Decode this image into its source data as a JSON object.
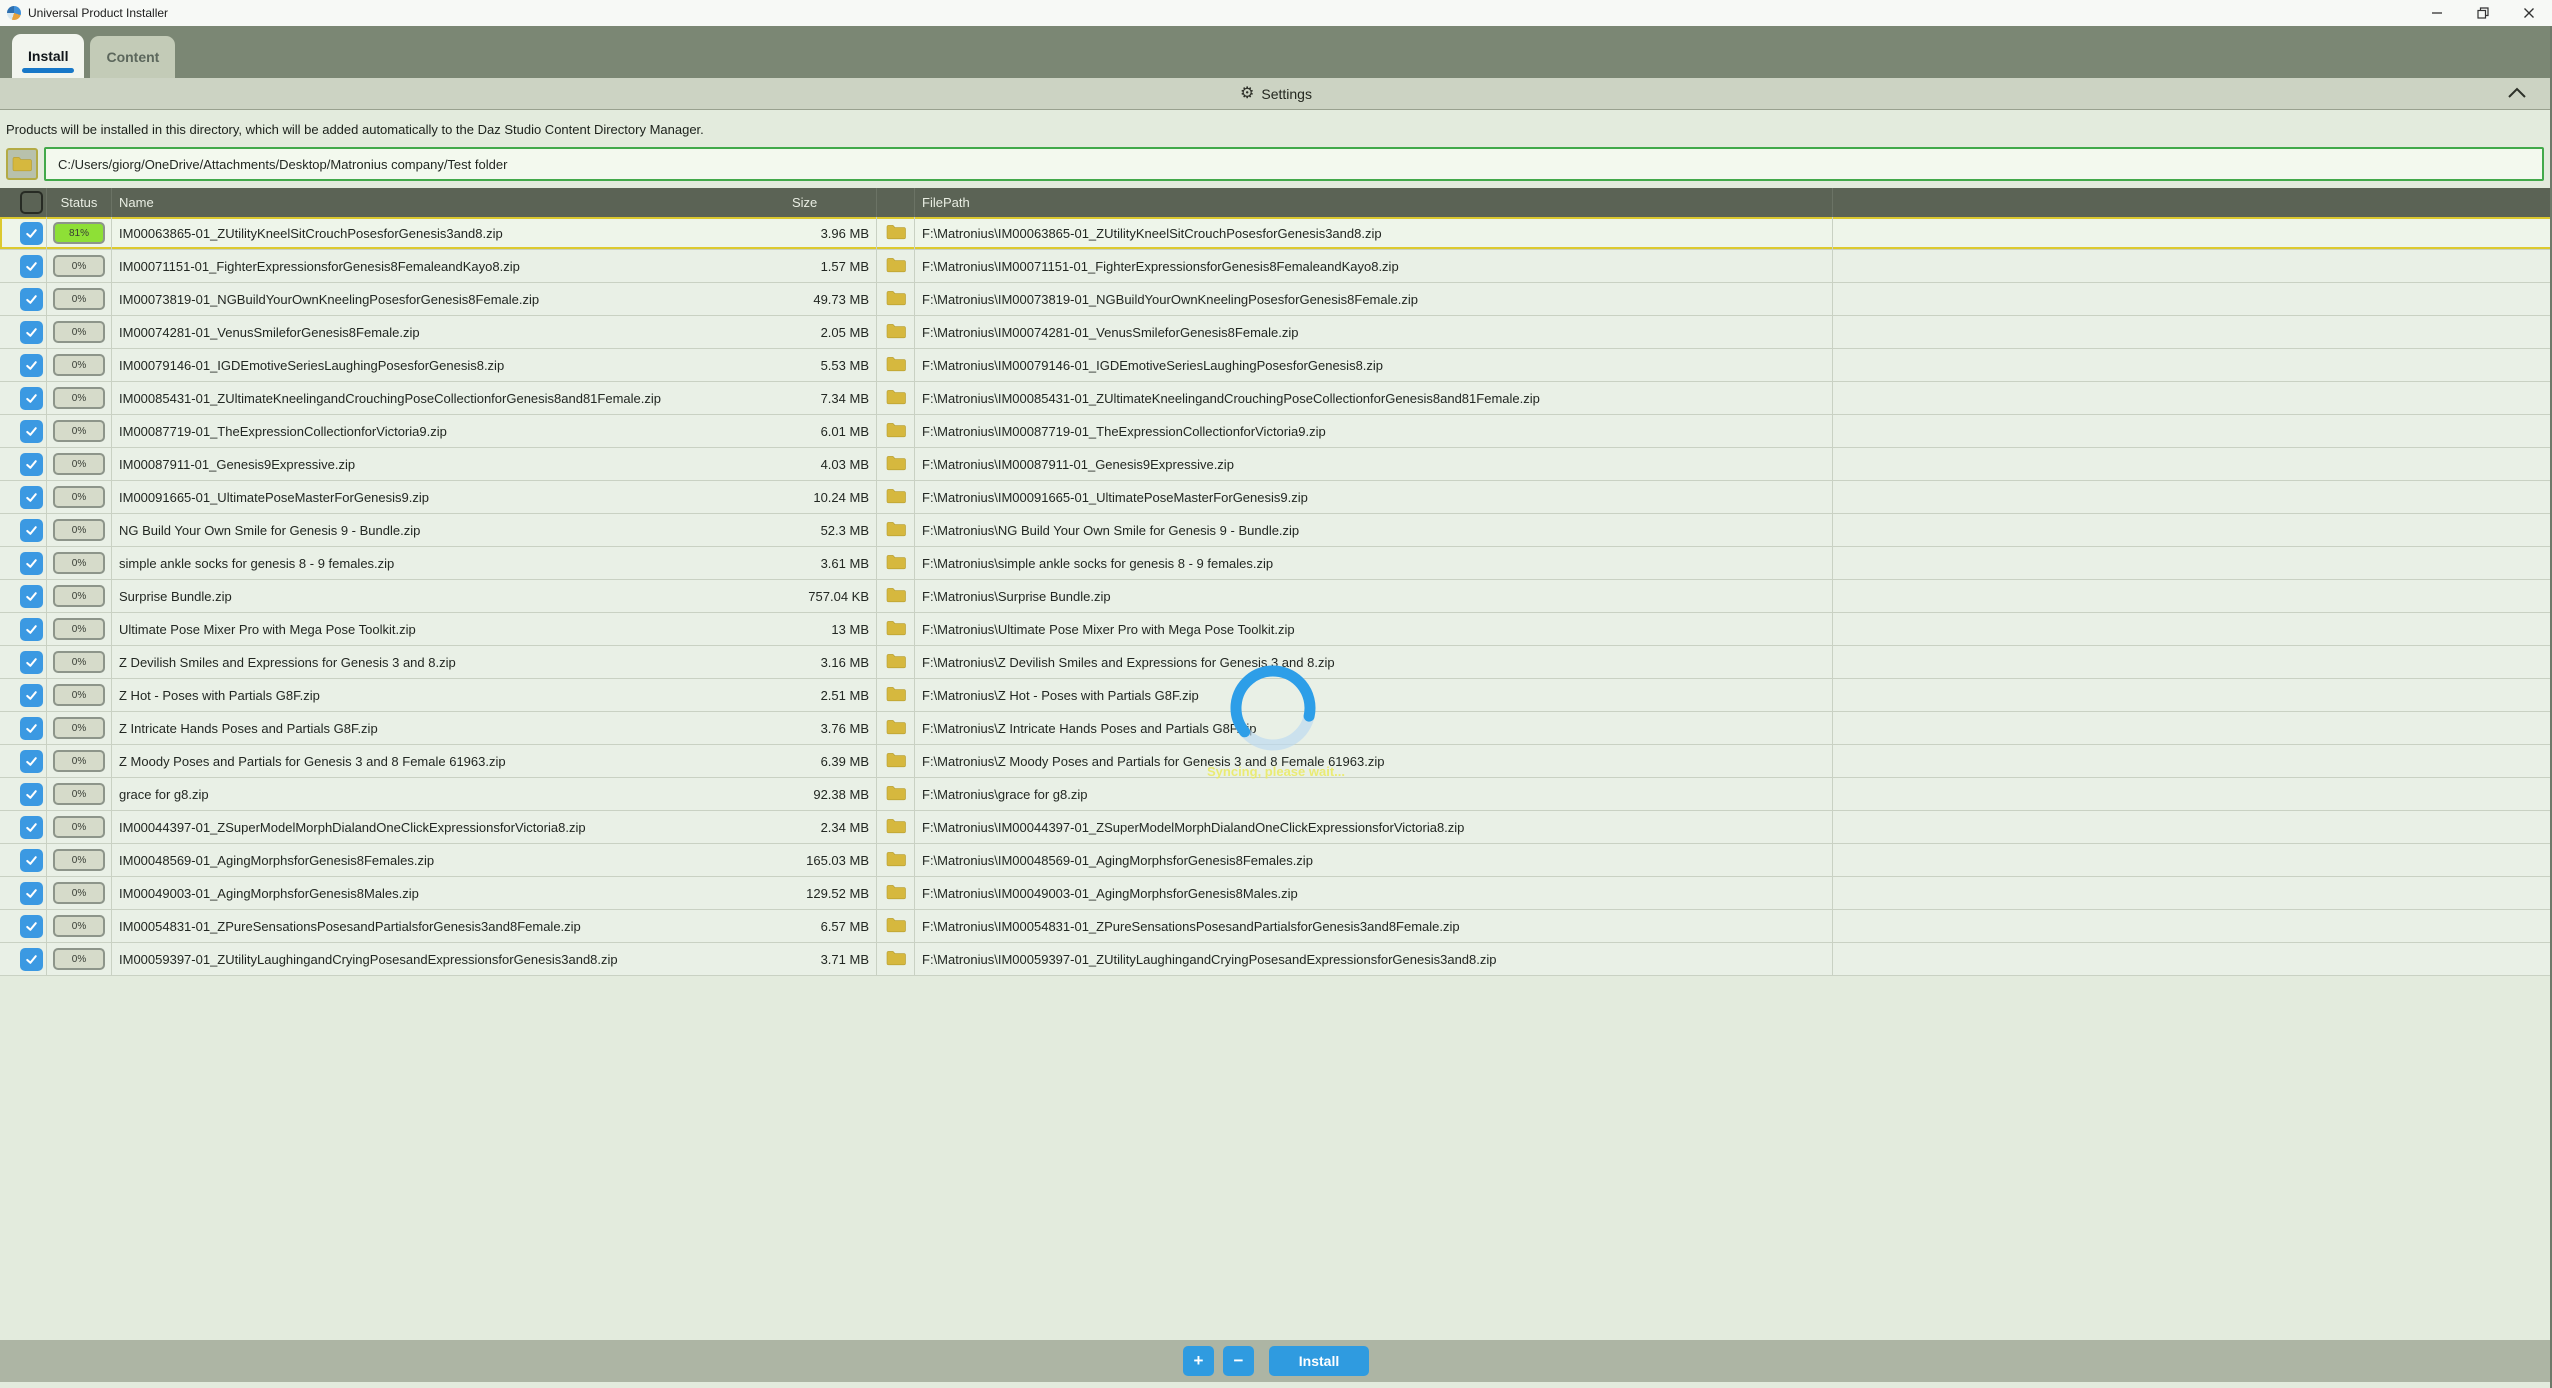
{
  "window": {
    "title": "Universal Product Installer",
    "controls": {
      "minimize": "minimize",
      "restore": "restore",
      "close": "close"
    }
  },
  "tabs": [
    {
      "label": "Install",
      "active": true
    },
    {
      "label": "Content",
      "active": false
    }
  ],
  "settings_bar": {
    "label": "Settings",
    "gear_icon": "gear-icon",
    "collapse_icon": "chevron-up-icon"
  },
  "description": "Products will be installed in this directory, which will be added automatically to the Daz Studio Content Directory Manager.",
  "path_input": {
    "value": "C:/Users/giorg/OneDrive/Attachments/Desktop/Matronius company/Test folder",
    "browse_icon": "folder-icon"
  },
  "table": {
    "headers": {
      "status": "Status",
      "name": "Name",
      "size": "Size",
      "filepath": "FilePath"
    },
    "rows": [
      {
        "checked": true,
        "status": "81%",
        "name": "IM00063865-01_ZUtilityKneelSitCrouchPosesforGenesis3and8.zip",
        "size": "3.96 MB",
        "path": "F:\\Matronius\\IM00063865-01_ZUtilityKneelSitCrouchPosesforGenesis3and8.zip",
        "highlight": true
      },
      {
        "checked": true,
        "status": "0%",
        "name": "IM00071151-01_FighterExpressionsforGenesis8FemaleandKayo8.zip",
        "size": "1.57 MB",
        "path": "F:\\Matronius\\IM00071151-01_FighterExpressionsforGenesis8FemaleandKayo8.zip",
        "highlight": false
      },
      {
        "checked": true,
        "status": "0%",
        "name": "IM00073819-01_NGBuildYourOwnKneelingPosesforGenesis8Female.zip",
        "size": "49.73 MB",
        "path": "F:\\Matronius\\IM00073819-01_NGBuildYourOwnKneelingPosesforGenesis8Female.zip",
        "highlight": false
      },
      {
        "checked": true,
        "status": "0%",
        "name": "IM00074281-01_VenusSmileforGenesis8Female.zip",
        "size": "2.05 MB",
        "path": "F:\\Matronius\\IM00074281-01_VenusSmileforGenesis8Female.zip",
        "highlight": false
      },
      {
        "checked": true,
        "status": "0%",
        "name": "IM00079146-01_IGDEmotiveSeriesLaughingPosesforGenesis8.zip",
        "size": "5.53 MB",
        "path": "F:\\Matronius\\IM00079146-01_IGDEmotiveSeriesLaughingPosesforGenesis8.zip",
        "highlight": false
      },
      {
        "checked": true,
        "status": "0%",
        "name": "IM00085431-01_ZUltimateKneelingandCrouchingPoseCollectionforGenesis8and81Female.zip",
        "size": "7.34 MB",
        "path": "F:\\Matronius\\IM00085431-01_ZUltimateKneelingandCrouchingPoseCollectionforGenesis8and81Female.zip",
        "highlight": false
      },
      {
        "checked": true,
        "status": "0%",
        "name": "IM00087719-01_TheExpressionCollectionforVictoria9.zip",
        "size": "6.01 MB",
        "path": "F:\\Matronius\\IM00087719-01_TheExpressionCollectionforVictoria9.zip",
        "highlight": false
      },
      {
        "checked": true,
        "status": "0%",
        "name": "IM00087911-01_Genesis9Expressive.zip",
        "size": "4.03 MB",
        "path": "F:\\Matronius\\IM00087911-01_Genesis9Expressive.zip",
        "highlight": false
      },
      {
        "checked": true,
        "status": "0%",
        "name": "IM00091665-01_UltimatePoseMasterForGenesis9.zip",
        "size": "10.24 MB",
        "path": "F:\\Matronius\\IM00091665-01_UltimatePoseMasterForGenesis9.zip",
        "highlight": false
      },
      {
        "checked": true,
        "status": "0%",
        "name": "NG Build Your Own Smile for Genesis 9 - Bundle.zip",
        "size": "52.3 MB",
        "path": "F:\\Matronius\\NG Build Your Own Smile for Genesis 9 - Bundle.zip",
        "highlight": false
      },
      {
        "checked": true,
        "status": "0%",
        "name": "simple ankle socks for genesis 8 - 9 females.zip",
        "size": "3.61 MB",
        "path": "F:\\Matronius\\simple ankle socks for genesis 8 - 9 females.zip",
        "highlight": false
      },
      {
        "checked": true,
        "status": "0%",
        "name": "Surprise Bundle.zip",
        "size": "757.04 KB",
        "path": "F:\\Matronius\\Surprise Bundle.zip",
        "highlight": false
      },
      {
        "checked": true,
        "status": "0%",
        "name": "Ultimate Pose Mixer Pro with Mega Pose Toolkit.zip",
        "size": "13 MB",
        "path": "F:\\Matronius\\Ultimate Pose Mixer Pro with Mega Pose Toolkit.zip",
        "highlight": false
      },
      {
        "checked": true,
        "status": "0%",
        "name": "Z Devilish Smiles and Expressions for Genesis 3 and 8.zip",
        "size": "3.16 MB",
        "path": "F:\\Matronius\\Z Devilish Smiles and Expressions for Genesis 3 and 8.zip",
        "highlight": false
      },
      {
        "checked": true,
        "status": "0%",
        "name": "Z Hot - Poses with Partials G8F.zip",
        "size": "2.51 MB",
        "path": "F:\\Matronius\\Z Hot - Poses with Partials G8F.zip",
        "highlight": false
      },
      {
        "checked": true,
        "status": "0%",
        "name": "Z Intricate Hands Poses and Partials G8F.zip",
        "size": "3.76 MB",
        "path": "F:\\Matronius\\Z Intricate Hands Poses and Partials G8F.zip",
        "highlight": false
      },
      {
        "checked": true,
        "status": "0%",
        "name": "Z Moody Poses and Partials for Genesis 3 and 8 Female 61963.zip",
        "size": "6.39 MB",
        "path": "F:\\Matronius\\Z Moody Poses and Partials for Genesis 3 and 8 Female 61963.zip",
        "highlight": false
      },
      {
        "checked": true,
        "status": "0%",
        "name": "grace for g8.zip",
        "size": "92.38 MB",
        "path": "F:\\Matronius\\grace for g8.zip",
        "highlight": false
      },
      {
        "checked": true,
        "status": "0%",
        "name": "IM00044397-01_ZSuperModelMorphDialandOneClickExpressionsforVictoria8.zip",
        "size": "2.34 MB",
        "path": "F:\\Matronius\\IM00044397-01_ZSuperModelMorphDialandOneClickExpressionsforVictoria8.zip",
        "highlight": false
      },
      {
        "checked": true,
        "status": "0%",
        "name": "IM00048569-01_AgingMorphsforGenesis8Females.zip",
        "size": "165.03 MB",
        "path": "F:\\Matronius\\IM00048569-01_AgingMorphsforGenesis8Females.zip",
        "highlight": false
      },
      {
        "checked": true,
        "status": "0%",
        "name": "IM00049003-01_AgingMorphsforGenesis8Males.zip",
        "size": "129.52 MB",
        "path": "F:\\Matronius\\IM00049003-01_AgingMorphsforGenesis8Males.zip",
        "highlight": false
      },
      {
        "checked": true,
        "status": "0%",
        "name": "IM00054831-01_ZPureSensationsPosesandPartialsforGenesis3and8Female.zip",
        "size": "6.57 MB",
        "path": "F:\\Matronius\\IM00054831-01_ZPureSensationsPosesandPartialsforGenesis3and8Female.zip",
        "highlight": false
      },
      {
        "checked": true,
        "status": "0%",
        "name": "IM00059397-01_ZUtilityLaughingandCryingPosesandExpressionsforGenesis3and8.zip",
        "size": "3.71 MB",
        "path": "F:\\Matronius\\IM00059397-01_ZUtilityLaughingandCryingPosesandExpressionsforGenesis3and8.zip",
        "highlight": false
      }
    ]
  },
  "overlay": {
    "spinner": "loading-spinner",
    "message": "Syncing, please wait..."
  },
  "footer": {
    "add_label": "+",
    "remove_label": "−",
    "install_label": "Install"
  },
  "colors": {
    "accent_blue": "#2f9be0",
    "checkbox_blue": "#3b99e2",
    "status_green": "#8ee036",
    "highlight_yellow": "#dcc92e",
    "path_border_green": "#42a94a",
    "folder_yellow": "#d6b83e",
    "header_bg": "#5b6355",
    "toolbar_bg": "#7b8774",
    "spinner_blue": "#2d9ee8",
    "sync_text_yellow": "#ebeb60"
  }
}
